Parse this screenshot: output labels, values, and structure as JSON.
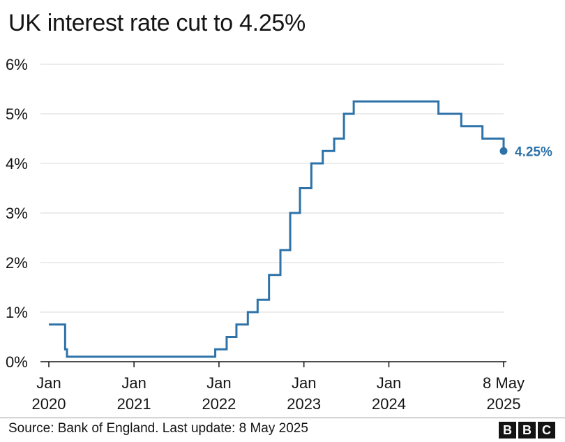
{
  "title": "UK interest rate cut to 4.25%",
  "source": "Source: Bank of England. Last update: 8 May 2025",
  "logo_letters": [
    "B",
    "B",
    "C"
  ],
  "colors": {
    "line": "#2e72a8",
    "label": "#2e72a8",
    "grid": "#d9d9d9",
    "axis": "#141414"
  },
  "chart_data": {
    "type": "line",
    "title": "UK interest rate cut to 4.25%",
    "xlabel": "",
    "ylabel": "",
    "step": "after",
    "ylim": [
      0,
      6
    ],
    "yticks": [
      0,
      1,
      2,
      3,
      4,
      5,
      6
    ],
    "ytick_labels": [
      "0%",
      "1%",
      "2%",
      "3%",
      "4%",
      "5%",
      "6%"
    ],
    "xlim": [
      "2020-01-01",
      "2025-05-08"
    ],
    "xticks": [
      {
        "date": "2020-01-01",
        "line1": "Jan",
        "line2": "2020"
      },
      {
        "date": "2021-01-01",
        "line1": "Jan",
        "line2": "2021"
      },
      {
        "date": "2022-01-01",
        "line1": "Jan",
        "line2": "2022"
      },
      {
        "date": "2023-01-01",
        "line1": "Jan",
        "line2": "2023"
      },
      {
        "date": "2024-01-01",
        "line1": "Jan",
        "line2": "2024"
      },
      {
        "date": "2025-05-08",
        "line1": "8 May",
        "line2": "2025"
      }
    ],
    "grid": true,
    "series": [
      {
        "name": "",
        "points": [
          [
            "2020-01-01",
            0.75
          ],
          [
            "2020-03-11",
            0.25
          ],
          [
            "2020-03-19",
            0.1
          ],
          [
            "2021-12-16",
            0.25
          ],
          [
            "2022-02-03",
            0.5
          ],
          [
            "2022-03-17",
            0.75
          ],
          [
            "2022-05-05",
            1.0
          ],
          [
            "2022-06-16",
            1.25
          ],
          [
            "2022-08-04",
            1.75
          ],
          [
            "2022-09-22",
            2.25
          ],
          [
            "2022-11-03",
            3.0
          ],
          [
            "2022-12-15",
            3.5
          ],
          [
            "2023-02-02",
            4.0
          ],
          [
            "2023-03-23",
            4.25
          ],
          [
            "2023-05-11",
            4.5
          ],
          [
            "2023-06-22",
            5.0
          ],
          [
            "2023-08-03",
            5.25
          ],
          [
            "2024-08-01",
            5.0
          ],
          [
            "2024-11-07",
            4.75
          ],
          [
            "2025-02-06",
            4.5
          ],
          [
            "2025-05-08",
            4.25
          ]
        ]
      }
    ],
    "end_label": "4.25%"
  }
}
